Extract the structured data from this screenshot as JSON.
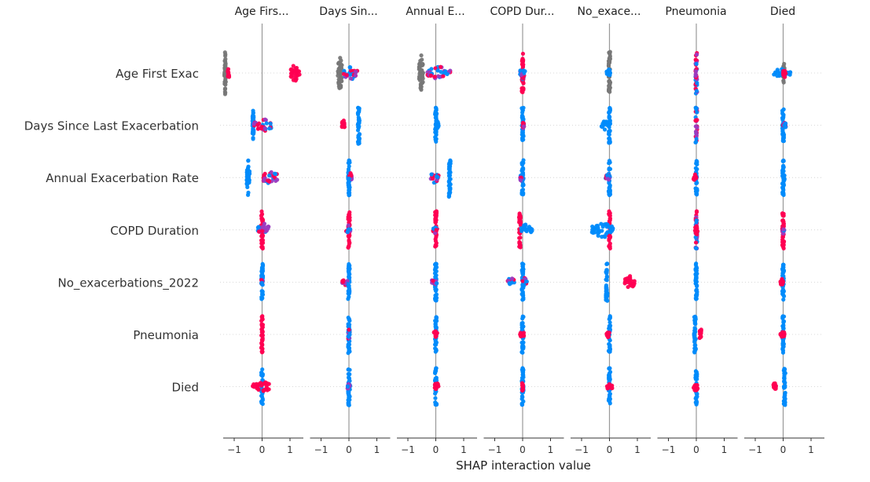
{
  "chart_data": {
    "type": "scatter",
    "subtype": "shap-interaction-summary-beeswarm",
    "xlabel": "SHAP interaction value",
    "xlim": [
      -1.4,
      1.4
    ],
    "xticks": [
      -1,
      0,
      1
    ],
    "xtick_labels": [
      "−1",
      "0",
      "1"
    ],
    "columns": [
      "Age Firs...",
      "Days Sin...",
      "Annual E...",
      "COPD Dur...",
      "No_exace...",
      "Pneumonia",
      "Died"
    ],
    "rows": [
      "Age First Exac",
      "Days Since Last Exacerbation",
      "Annual Exacerbation Rate",
      "COPD Duration",
      "No_exacerbations_2022",
      "Pneumonia",
      "Died"
    ],
    "colors": {
      "low": "#008bfb",
      "high": "#ff0052",
      "mid": "#9b3bc0",
      "main_effect": "#777777",
      "axis": "#999999",
      "gridline": "#cccccc"
    },
    "cells": [
      [
        {
          "main": true,
          "clusters": [
            [
              -1.35,
              -1.3,
              2.4
            ],
            [
              -1.2,
              -1.2,
              0.4,
              "high"
            ],
            [
              1.0,
              1.35,
              0.9,
              "high"
            ]
          ]
        },
        {
          "main": true,
          "clusters": [
            [
              -0.4,
              -0.25,
              2.0
            ],
            [
              -0.2,
              0.35,
              0.7,
              "mixed"
            ]
          ]
        },
        {
          "main": true,
          "clusters": [
            [
              -0.6,
              -0.45,
              2.0
            ],
            [
              -0.3,
              0.55,
              0.7,
              "mixed"
            ]
          ]
        },
        {
          "clusters": [
            [
              0.0,
              0.0,
              2.0,
              "high"
            ],
            [
              -0.1,
              0.1,
              0.7,
              "mixed"
            ]
          ]
        },
        {
          "main": true,
          "clusters": [
            [
              0.0,
              0.0,
              2.2
            ],
            [
              -0.1,
              0.05,
              0.4,
              "low"
            ]
          ]
        },
        {
          "clusters": [
            [
              0.0,
              0.0,
              2.1,
              "mixed"
            ]
          ]
        },
        {
          "main": true,
          "clusters": [
            [
              0.0,
              0.05,
              1.3
            ],
            [
              -0.35,
              0.3,
              0.5,
              "low"
            ],
            [
              0.0,
              0.1,
              0.5,
              "high"
            ]
          ]
        }
      ],
      [
        {
          "clusters": [
            [
              -0.35,
              -0.3,
              1.9,
              "low"
            ],
            [
              -0.3,
              0.35,
              0.7,
              "mixed"
            ]
          ]
        },
        {
          "clusters": [
            [
              -0.25,
              -0.15,
              0.6,
              "high"
            ],
            [
              0.35,
              0.35,
              1.9,
              "low"
            ]
          ]
        },
        {
          "clusters": [
            [
              0.0,
              0.0,
              1.8,
              "low"
            ],
            [
              0.0,
              0.1,
              0.5,
              "low"
            ]
          ]
        },
        {
          "clusters": [
            [
              0.0,
              0.0,
              1.8,
              "low"
            ],
            [
              0.0,
              0.05,
              0.4,
              "mixed"
            ]
          ]
        },
        {
          "clusters": [
            [
              0.0,
              0.0,
              1.8,
              "low"
            ],
            [
              -0.3,
              0.0,
              0.5,
              "low"
            ]
          ]
        },
        {
          "clusters": [
            [
              0.0,
              0.0,
              1.8,
              "mixed"
            ]
          ]
        },
        {
          "clusters": [
            [
              0.0,
              0.0,
              1.8,
              "low"
            ],
            [
              0.0,
              0.1,
              0.4,
              "mixed"
            ]
          ]
        }
      ],
      [
        {
          "clusters": [
            [
              -0.55,
              -0.45,
              1.9,
              "low"
            ],
            [
              0.0,
              0.55,
              0.8,
              "mixed"
            ]
          ]
        },
        {
          "clusters": [
            [
              0.0,
              0.0,
              1.8,
              "low"
            ],
            [
              0.0,
              0.1,
              0.5,
              "mixed"
            ]
          ]
        },
        {
          "clusters": [
            [
              -0.2,
              0.1,
              0.6,
              "mixed"
            ],
            [
              0.5,
              0.5,
              2.0,
              "low"
            ]
          ]
        },
        {
          "clusters": [
            [
              0.0,
              0.0,
              1.8,
              "low"
            ],
            [
              -0.1,
              0.0,
              0.4,
              "mixed"
            ]
          ]
        },
        {
          "clusters": [
            [
              0.0,
              0.0,
              1.8,
              "low"
            ],
            [
              -0.15,
              0.0,
              0.4,
              "mixed"
            ]
          ]
        },
        {
          "clusters": [
            [
              0.0,
              0.0,
              1.8,
              "low"
            ],
            [
              -0.1,
              0.0,
              0.4,
              "high"
            ]
          ]
        },
        {
          "clusters": [
            [
              0.0,
              0.0,
              1.8,
              "low"
            ],
            [
              0.0,
              0.05,
              0.4,
              "low"
            ]
          ]
        }
      ],
      [
        {
          "clusters": [
            [
              0.0,
              0.0,
              1.9,
              "high"
            ],
            [
              -0.15,
              0.25,
              0.7,
              "mixed"
            ]
          ]
        },
        {
          "clusters": [
            [
              0.0,
              0.0,
              1.9,
              "high"
            ],
            [
              -0.1,
              0.05,
              0.5,
              "mixed"
            ]
          ]
        },
        {
          "clusters": [
            [
              0.0,
              0.0,
              1.9,
              "high"
            ],
            [
              -0.1,
              0.05,
              0.4,
              "mixed"
            ]
          ]
        },
        {
          "clusters": [
            [
              -0.1,
              -0.1,
              1.9,
              "high"
            ],
            [
              -0.05,
              0.35,
              0.7,
              "low"
            ]
          ]
        },
        {
          "clusters": [
            [
              0.0,
              0.0,
              1.9,
              "high"
            ],
            [
              -0.65,
              0.15,
              0.9,
              "low"
            ]
          ]
        },
        {
          "clusters": [
            [
              0.0,
              0.0,
              1.9,
              "mixed"
            ],
            [
              -0.05,
              0.05,
              0.5,
              "high"
            ]
          ]
        },
        {
          "clusters": [
            [
              0.0,
              0.0,
              1.9,
              "high"
            ],
            [
              -0.05,
              0.05,
              0.4,
              "mixed"
            ]
          ]
        }
      ],
      [
        {
          "clusters": [
            [
              0.0,
              0.0,
              1.9,
              "low"
            ],
            [
              0.0,
              0.0,
              0.3,
              "mixed"
            ]
          ]
        },
        {
          "clusters": [
            [
              0.0,
              0.0,
              1.9,
              "low"
            ],
            [
              -0.25,
              -0.05,
              0.4,
              "mixed"
            ]
          ]
        },
        {
          "clusters": [
            [
              0.0,
              0.0,
              1.9,
              "low"
            ],
            [
              -0.15,
              0.05,
              0.4,
              "mixed"
            ]
          ]
        },
        {
          "clusters": [
            [
              0.0,
              0.0,
              1.9,
              "low"
            ],
            [
              -0.55,
              -0.3,
              0.5,
              "mixed"
            ],
            [
              0.0,
              0.15,
              0.5,
              "mixed"
            ]
          ]
        },
        {
          "clusters": [
            [
              -0.1,
              -0.1,
              1.9,
              "low"
            ],
            [
              0.55,
              0.9,
              0.7,
              "high"
            ]
          ]
        },
        {
          "clusters": [
            [
              0.0,
              0.0,
              1.9,
              "low"
            ]
          ]
        },
        {
          "clusters": [
            [
              0.0,
              0.0,
              1.9,
              "low"
            ],
            [
              -0.1,
              0.0,
              0.4,
              "high"
            ]
          ]
        }
      ],
      [
        {
          "clusters": [
            [
              0.0,
              0.0,
              1.9,
              "high"
            ]
          ]
        },
        {
          "clusters": [
            [
              0.0,
              0.0,
              1.9,
              "low"
            ],
            [
              0.0,
              0.0,
              0.5,
              "mixed"
            ]
          ]
        },
        {
          "clusters": [
            [
              0.0,
              0.0,
              1.9,
              "low"
            ],
            [
              -0.1,
              0.05,
              0.4,
              "high"
            ]
          ]
        },
        {
          "clusters": [
            [
              0.0,
              0.0,
              1.9,
              "low"
            ],
            [
              -0.1,
              0.05,
              0.4,
              "high"
            ]
          ]
        },
        {
          "clusters": [
            [
              0.0,
              0.0,
              1.9,
              "low"
            ],
            [
              -0.1,
              0.0,
              0.4,
              "high"
            ]
          ]
        },
        {
          "clusters": [
            [
              -0.05,
              -0.05,
              1.9,
              "low"
            ],
            [
              0.15,
              0.15,
              0.5,
              "high"
            ]
          ]
        },
        {
          "clusters": [
            [
              0.0,
              0.0,
              1.9,
              "low"
            ],
            [
              -0.1,
              0.05,
              0.4,
              "high"
            ]
          ]
        }
      ],
      [
        {
          "clusters": [
            [
              0.0,
              0.0,
              1.9,
              "low"
            ],
            [
              -0.35,
              0.3,
              0.6,
              "high"
            ]
          ]
        },
        {
          "clusters": [
            [
              0.0,
              0.0,
              1.9,
              "low"
            ],
            [
              -0.05,
              0.05,
              0.5,
              "mixed"
            ]
          ]
        },
        {
          "clusters": [
            [
              0.0,
              0.0,
              1.9,
              "low"
            ],
            [
              -0.05,
              0.1,
              0.5,
              "high"
            ]
          ]
        },
        {
          "clusters": [
            [
              0.0,
              0.0,
              1.9,
              "low"
            ],
            [
              0.0,
              0.0,
              0.4,
              "high"
            ]
          ]
        },
        {
          "clusters": [
            [
              0.0,
              0.0,
              1.9,
              "low"
            ],
            [
              -0.1,
              0.1,
              0.4,
              "high"
            ]
          ]
        },
        {
          "clusters": [
            [
              0.0,
              0.0,
              1.9,
              "low"
            ],
            [
              -0.1,
              0.05,
              0.5,
              "high"
            ]
          ]
        },
        {
          "clusters": [
            [
              0.05,
              0.05,
              1.9,
              "low"
            ],
            [
              -0.35,
              -0.25,
              0.5,
              "high"
            ]
          ]
        }
      ]
    ]
  }
}
